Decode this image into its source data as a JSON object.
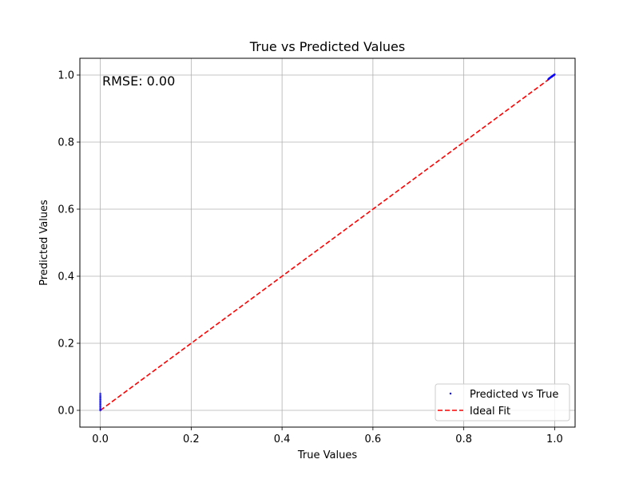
{
  "chart_data": {
    "type": "scatter",
    "title": "True vs Predicted Values",
    "xlabel": "True Values",
    "ylabel": "Predicted Values",
    "xlim": [
      -0.045,
      1.045
    ],
    "ylim": [
      -0.05,
      1.05
    ],
    "xticks": [
      0.0,
      0.2,
      0.4,
      0.6,
      0.8,
      1.0
    ],
    "xtick_labels": [
      "0.0",
      "0.2",
      "0.4",
      "0.6",
      "0.8",
      "1.0"
    ],
    "yticks": [
      0.0,
      0.2,
      0.4,
      0.6,
      0.8,
      1.0
    ],
    "ytick_labels": [
      "0.0",
      "0.2",
      "0.4",
      "0.6",
      "0.8",
      "1.0"
    ],
    "grid": true,
    "legend_position": "bottom-right",
    "annotation": "RMSE: 0.00",
    "series": [
      {
        "name": "Predicted vs True",
        "kind": "scatter",
        "color": "#0000ff",
        "points": [
          [
            0.0,
            0.0
          ],
          [
            0.0,
            0.003
          ],
          [
            0.0,
            0.006
          ],
          [
            0.0,
            0.01
          ],
          [
            0.0,
            0.013
          ],
          [
            0.0,
            0.017
          ],
          [
            0.0,
            0.02
          ],
          [
            0.0,
            0.024
          ],
          [
            0.0,
            0.027
          ],
          [
            0.0,
            0.031
          ],
          [
            0.0,
            0.034
          ],
          [
            0.0,
            0.038
          ],
          [
            0.0,
            0.041
          ],
          [
            0.0,
            0.045
          ],
          [
            0.0,
            0.05
          ],
          [
            0.986,
            0.987
          ],
          [
            0.987,
            0.989
          ],
          [
            0.988,
            0.99
          ],
          [
            0.989,
            0.991
          ],
          [
            0.99,
            0.992
          ],
          [
            0.991,
            0.993
          ],
          [
            0.992,
            0.994
          ],
          [
            0.993,
            0.995
          ],
          [
            0.994,
            0.996
          ],
          [
            0.995,
            0.997
          ],
          [
            0.996,
            0.998
          ],
          [
            0.997,
            0.999
          ],
          [
            0.998,
            1.0
          ],
          [
            0.999,
            1.001
          ],
          [
            1.0,
            1.002
          ]
        ]
      },
      {
        "name": "Ideal Fit",
        "kind": "line",
        "style": "dashed",
        "color": "#ff0000",
        "x": [
          0.0,
          1.0
        ],
        "y": [
          0.0,
          1.0
        ]
      }
    ]
  }
}
